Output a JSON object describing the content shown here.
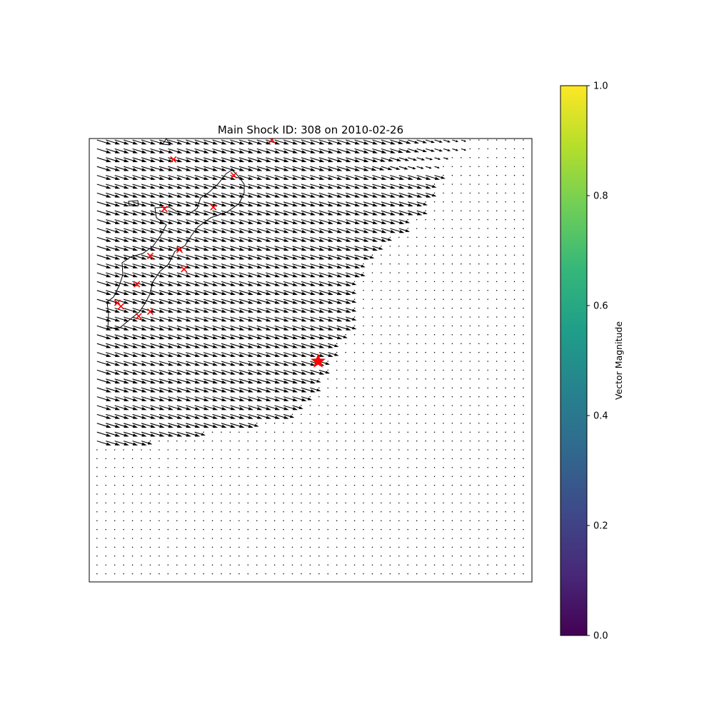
{
  "chart_data": {
    "type": "quiver",
    "title": "Main Shock ID: 308 on 2010-02-26",
    "grid": false,
    "axes_ticks_visible": false,
    "vector_field": {
      "grid_cols": 50,
      "grid_rows": 50,
      "dominant_direction": "east-south-east",
      "large_vector_region": "upper-left, bounded by a diagonal front",
      "front_edge_col_by_row": [
        42,
        42,
        40,
        39,
        39,
        38,
        38,
        37,
        37,
        35,
        35,
        33,
        32,
        31,
        30,
        30,
        29,
        29,
        29,
        29,
        29,
        29,
        28,
        27,
        27,
        26,
        26,
        25,
        25,
        24,
        23,
        22,
        18,
        12,
        6,
        0,
        0,
        0,
        0,
        0,
        0,
        0,
        0,
        0,
        0,
        0,
        0,
        0,
        0,
        0
      ],
      "mid_gap_row_start_col": 3,
      "elsewhere": "negligible magnitude (dots)"
    },
    "markers": {
      "main_shock": {
        "symbol": "star",
        "color": "#ff0000",
        "col": 24.9,
        "row": 25.0
      },
      "aftershocks": {
        "symbol": "x",
        "color": "#ff0000",
        "points": [
          {
            "col": 19.7,
            "row": 0.0
          },
          {
            "col": 8.6,
            "row": 2.2
          },
          {
            "col": 15.4,
            "row": 4.0
          },
          {
            "col": 13.1,
            "row": 7.6
          },
          {
            "col": 7.6,
            "row": 7.8
          },
          {
            "col": 9.3,
            "row": 12.4
          },
          {
            "col": 6.0,
            "row": 13.1
          },
          {
            "col": 9.8,
            "row": 14.6
          },
          {
            "col": 4.5,
            "row": 16.3
          },
          {
            "col": 2.3,
            "row": 18.4
          },
          {
            "col": 2.7,
            "row": 18.8
          },
          {
            "col": 6.0,
            "row": 19.4
          },
          {
            "col": 4.7,
            "row": 19.9
          }
        ]
      }
    },
    "coastline": "outline in upper-left quadrant",
    "colorbar": {
      "label": "Vector Magnitude",
      "colormap": "viridis",
      "range": [
        0,
        1
      ],
      "ticks": [
        "0.0",
        "0.2",
        "0.4",
        "0.6",
        "0.8",
        "1.0"
      ],
      "tick_values": [
        0.0,
        0.2,
        0.4,
        0.6,
        0.8,
        1.0
      ],
      "colors": [
        "#440154",
        "#482878",
        "#3e4989",
        "#31688e",
        "#26828e",
        "#1f9e89",
        "#35b779",
        "#6ece58",
        "#b5de2b",
        "#fde725"
      ]
    },
    "arrow_color": "#000000",
    "marker_color": "#ff0000"
  }
}
